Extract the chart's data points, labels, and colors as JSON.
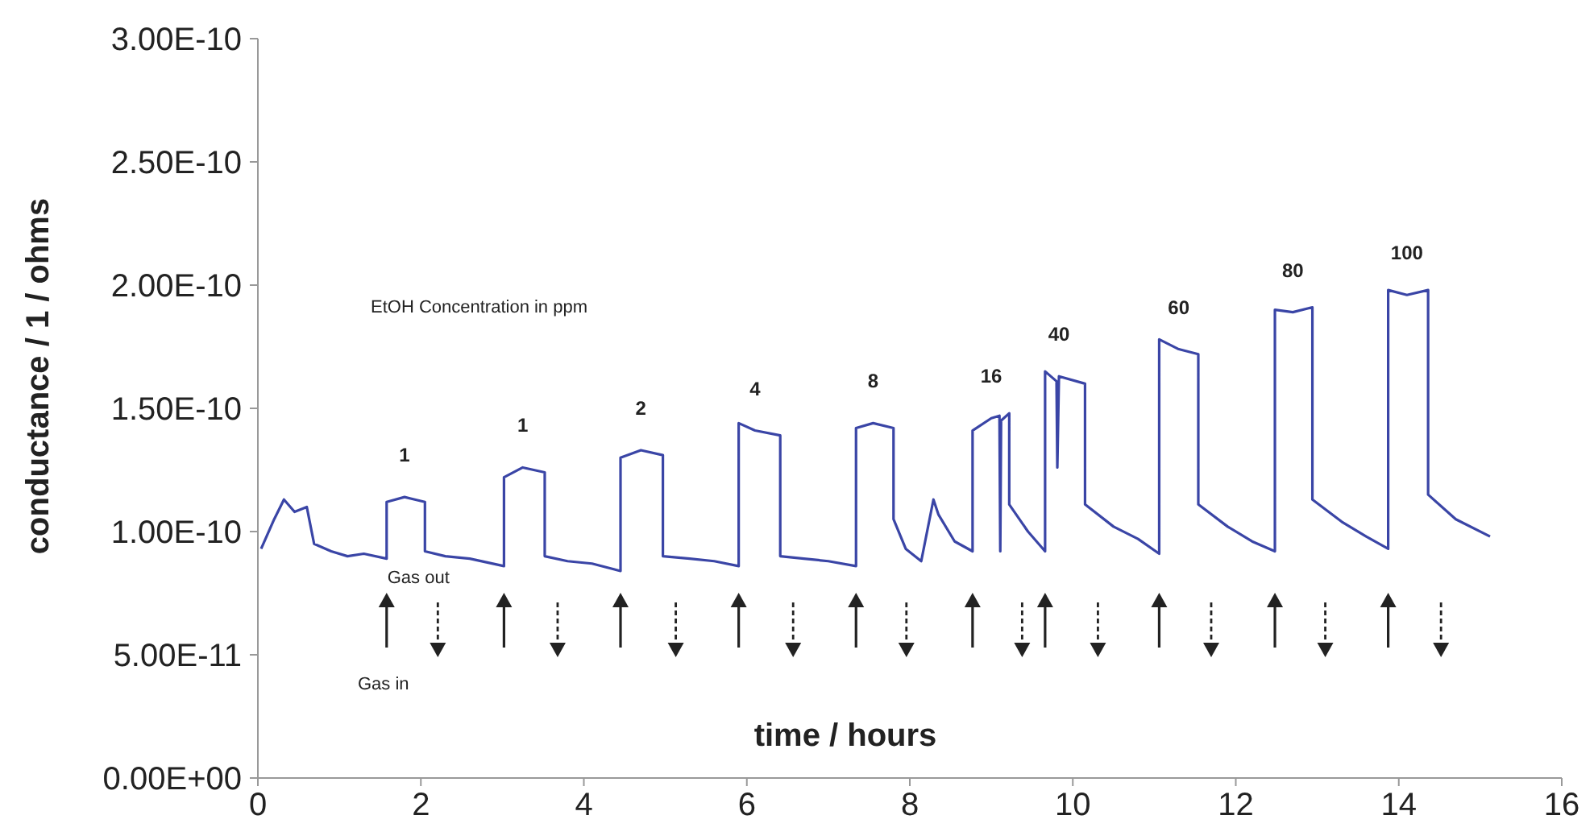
{
  "chart_data": {
    "type": "line",
    "xlabel": "time / hours",
    "ylabel": "conductance / 1 / ohms",
    "xlim": [
      0,
      16
    ],
    "xticks": [
      0,
      2,
      4,
      6,
      8,
      10,
      12,
      14,
      16
    ],
    "ylim": [
      0,
      3e-10
    ],
    "yticks": [
      {
        "value": 0,
        "label": "0.00E+00"
      },
      {
        "value": 5e-11,
        "label": "5.00E-11"
      },
      {
        "value": 1e-10,
        "label": "1.00E-10"
      },
      {
        "value": 1.5e-10,
        "label": "1.50E-10"
      },
      {
        "value": 2e-10,
        "label": "2.00E-10"
      },
      {
        "value": 2.5e-10,
        "label": "2.50E-10"
      },
      {
        "value": 3e-10,
        "label": "3.00E-10"
      }
    ],
    "grid": false,
    "marker": "none",
    "line_style": "solid",
    "series": [
      {
        "color": "#3a45a6",
        "x": [
          0.04,
          0.2,
          0.32,
          0.45,
          0.6,
          0.69,
          0.9,
          1.1,
          1.3,
          1.58,
          1.58,
          1.8,
          2.05,
          2.05,
          2.3,
          2.6,
          3.02,
          3.02,
          3.25,
          3.52,
          3.52,
          3.8,
          4.1,
          4.45,
          4.45,
          4.7,
          4.97,
          4.97,
          5.3,
          5.6,
          5.9,
          5.9,
          6.1,
          6.41,
          6.41,
          6.7,
          7.0,
          7.34,
          7.34,
          7.55,
          7.8,
          7.8,
          7.95,
          8.14,
          8.29,
          8.35,
          8.55,
          8.77,
          8.77,
          9.0,
          9.1,
          9.11,
          9.12,
          9.22,
          9.22,
          9.45,
          9.66,
          9.66,
          9.8,
          9.81,
          9.83,
          10.15,
          10.15,
          10.5,
          10.8,
          11.06,
          11.06,
          11.3,
          11.54,
          11.54,
          11.9,
          12.2,
          12.48,
          12.48,
          12.7,
          12.94,
          12.94,
          13.3,
          13.6,
          13.87,
          13.87,
          14.1,
          14.36,
          14.36,
          14.7,
          15.12
        ],
        "values": [
          9.3e-11,
          1.05e-10,
          1.13e-10,
          1.08e-10,
          1.1e-10,
          9.5e-11,
          9.2e-11,
          9e-11,
          9.1e-11,
          8.9e-11,
          1.12e-10,
          1.14e-10,
          1.12e-10,
          9.2e-11,
          9e-11,
          8.9e-11,
          8.6e-11,
          1.22e-10,
          1.26e-10,
          1.24e-10,
          9e-11,
          8.8e-11,
          8.7e-11,
          8.4e-11,
          1.3e-10,
          1.33e-10,
          1.31e-10,
          9e-11,
          8.9e-11,
          8.8e-11,
          8.6e-11,
          1.44e-10,
          1.41e-10,
          1.39e-10,
          9e-11,
          8.9e-11,
          8.8e-11,
          8.6e-11,
          1.42e-10,
          1.44e-10,
          1.42e-10,
          1.05e-10,
          9.3e-11,
          8.8e-11,
          1.13e-10,
          1.07e-10,
          9.6e-11,
          9.2e-11,
          1.41e-10,
          1.46e-10,
          1.47e-10,
          9.2e-11,
          1.45e-10,
          1.48e-10,
          1.11e-10,
          1e-10,
          9.2e-11,
          1.65e-10,
          1.61e-10,
          1.26e-10,
          1.63e-10,
          1.6e-10,
          1.11e-10,
          1.02e-10,
          9.7e-11,
          9.1e-11,
          1.78e-10,
          1.74e-10,
          1.72e-10,
          1.11e-10,
          1.02e-10,
          9.6e-11,
          9.2e-11,
          1.9e-10,
          1.89e-10,
          1.91e-10,
          1.13e-10,
          1.04e-10,
          9.8e-11,
          9.3e-11,
          1.98e-10,
          1.96e-10,
          1.98e-10,
          1.15e-10,
          1.05e-10,
          9.8e-11
        ]
      }
    ],
    "annotations": [
      "EtOH Concentration in ppm",
      {
        "text": "1",
        "x": 1.8,
        "y": 1.14e-10
      },
      {
        "text": "1",
        "x": 3.25,
        "y": 1.26e-10
      },
      {
        "text": "2",
        "x": 4.7,
        "y": 1.33e-10
      },
      {
        "text": "4",
        "x": 6.1,
        "y": 1.41e-10
      },
      {
        "text": "8",
        "x": 7.55,
        "y": 1.44e-10
      },
      {
        "text": "16",
        "x": 9.0,
        "y": 1.46e-10
      },
      {
        "text": "40",
        "x": 9.83,
        "y": 1.63e-10
      },
      {
        "text": "60",
        "x": 11.3,
        "y": 1.74e-10
      },
      {
        "text": "80",
        "x": 12.7,
        "y": 1.89e-10
      },
      {
        "text": "100",
        "x": 14.1,
        "y": 1.96e-10
      },
      "Gas out",
      "Gas in"
    ]
  }
}
